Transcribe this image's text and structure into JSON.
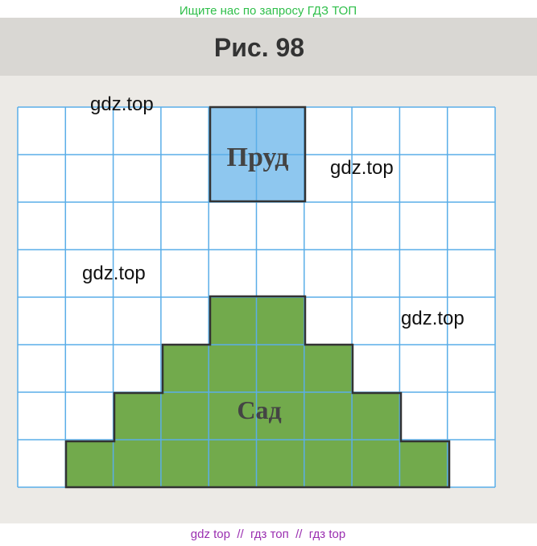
{
  "header": {
    "search_hint": "Ищите нас по запросу ГДЗ ТОП"
  },
  "figure": {
    "title": "Рис. 98",
    "pond_label": "Пруд",
    "garden_label": "Сад"
  },
  "watermarks": [
    "gdz.top",
    "gdz.top",
    "gdz.top",
    "gdz.top"
  ],
  "footer": {
    "text": "gdz top  //  гдз топ  //  гдз top"
  }
}
